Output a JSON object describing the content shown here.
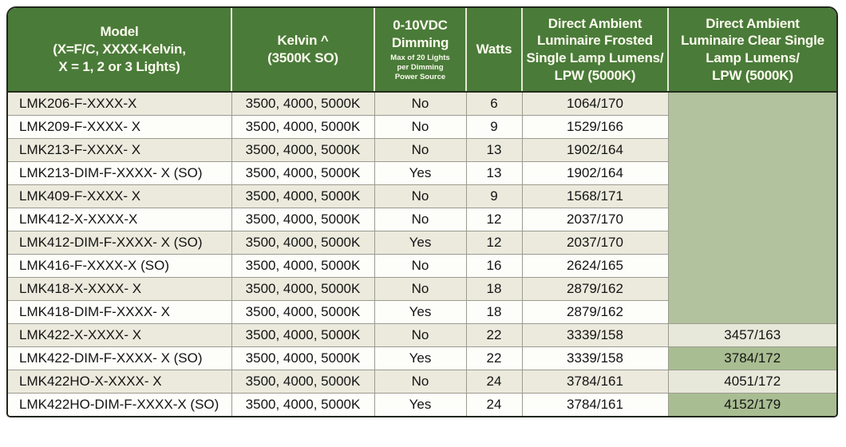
{
  "colors": {
    "header_green": "#4a7b39",
    "header_text": "#fcfbee",
    "row_beige": "#ebeadd",
    "row_white": "#fdfdfa",
    "sage_block": "#b2c19e",
    "sage_cell": "#a9bd92",
    "frame_border": "#20261a",
    "divider_gray": "#9b9b8f"
  },
  "header": {
    "model": {
      "l1": "Model",
      "l2": "(X=F/C, XXXX-Kelvin,",
      "l3": "X = 1, 2 or 3 Lights)"
    },
    "kelvin": {
      "l1": "Kelvin ^",
      "l2": "(3500K SO)"
    },
    "dimming": {
      "l1": "0-10VDC",
      "l2": "Dimming",
      "n1": "Max of 20 Lights",
      "n2": "per Dimming",
      "n3": "Power Source"
    },
    "watts": {
      "l1": "Watts"
    },
    "frosted": {
      "l1": "Direct Ambient",
      "l2": "Luminaire Frosted",
      "l3": "Single Lamp Lumens/",
      "l4": "LPW (5000K)"
    },
    "clear": {
      "l1": "Direct Ambient",
      "l2": "Luminaire Clear Single",
      "l3": "Lamp Lumens/",
      "l4": "LPW (5000K)"
    }
  },
  "clear_block": {
    "rowspan": 10,
    "value": ""
  },
  "rows": [
    {
      "model": "LMK206-F-XXXX-X",
      "kelvin": "3500, 4000, 5000K",
      "dimming": "No",
      "watts": "6",
      "frosted": "1064/170",
      "clear": null,
      "clear_green": false
    },
    {
      "model": "LMK209-F-XXXX- X",
      "kelvin": "3500, 4000, 5000K",
      "dimming": "No",
      "watts": "9",
      "frosted": "1529/166",
      "clear": null,
      "clear_green": false
    },
    {
      "model": "LMK213-F-XXXX- X",
      "kelvin": "3500, 4000, 5000K",
      "dimming": "No",
      "watts": "13",
      "frosted": "1902/164",
      "clear": null,
      "clear_green": false
    },
    {
      "model": "LMK213-DIM-F-XXXX- X (SO)",
      "kelvin": "3500, 4000, 5000K",
      "dimming": "Yes",
      "watts": "13",
      "frosted": "1902/164",
      "clear": null,
      "clear_green": false
    },
    {
      "model": "LMK409-F-XXXX- X",
      "kelvin": "3500, 4000, 5000K",
      "dimming": "No",
      "watts": "9",
      "frosted": "1568/171",
      "clear": null,
      "clear_green": false
    },
    {
      "model": "LMK412-X-XXXX-X",
      "kelvin": "3500, 4000, 5000K",
      "dimming": "No",
      "watts": "12",
      "frosted": "2037/170",
      "clear": null,
      "clear_green": false
    },
    {
      "model": "LMK412-DIM-F-XXXX- X (SO)",
      "kelvin": "3500, 4000, 5000K",
      "dimming": "Yes",
      "watts": "12",
      "frosted": "2037/170",
      "clear": null,
      "clear_green": false
    },
    {
      "model": "LMK416-F-XXXX-X (SO)",
      "kelvin": "3500, 4000, 5000K",
      "dimming": "No",
      "watts": "16",
      "frosted": "2624/165",
      "clear": null,
      "clear_green": false
    },
    {
      "model": "LMK418-X-XXXX- X",
      "kelvin": "3500, 4000, 5000K",
      "dimming": "No",
      "watts": "18",
      "frosted": "2879/162",
      "clear": null,
      "clear_green": false
    },
    {
      "model": "LMK418-DIM-F-XXXX- X",
      "kelvin": "3500, 4000, 5000K",
      "dimming": "Yes",
      "watts": "18",
      "frosted": "2879/162",
      "clear": null,
      "clear_green": false
    },
    {
      "model": "LMK422-X-XXXX- X",
      "kelvin": "3500, 4000, 5000K",
      "dimming": "No",
      "watts": "22",
      "frosted": "3339/158",
      "clear": "3457/163",
      "clear_green": false
    },
    {
      "model": "LMK422-DIM-F-XXXX- X (SO)",
      "kelvin": "3500, 4000, 5000K",
      "dimming": "Yes",
      "watts": "22",
      "frosted": "3339/158",
      "clear": "3784/172",
      "clear_green": true
    },
    {
      "model": "LMK422HO-X-XXXX- X",
      "kelvin": "3500, 4000, 5000K",
      "dimming": "No",
      "watts": "24",
      "frosted": "3784/161",
      "clear": "4051/172",
      "clear_green": false
    },
    {
      "model": "LMK422HO-DIM-F-XXXX-X (SO)",
      "kelvin": "3500, 4000, 5000K",
      "dimming": "Yes",
      "watts": "24",
      "frosted": "3784/161",
      "clear": "4152/179",
      "clear_green": true
    }
  ]
}
